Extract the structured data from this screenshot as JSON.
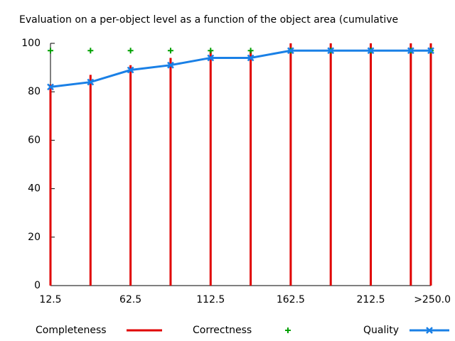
{
  "chart_data": {
    "type": "line",
    "title": "Evaluation on a per-object level as a function of the object area (cumulative",
    "x": [
      12.5,
      37.5,
      62.5,
      87.5,
      112.5,
      137.5,
      162.5,
      187.5,
      212.5,
      237.5,
      250
    ],
    "xlim": [
      12.5,
      250
    ],
    "xticks": [
      12.5,
      62.5,
      112.5,
      162.5,
      212.5,
      {
        "value": 250,
        "label": ">250.0"
      }
    ],
    "ylim": [
      0,
      100
    ],
    "yticks": [
      0,
      20,
      40,
      60,
      80,
      100
    ],
    "legend": "bottom",
    "series": [
      {
        "name": "Completeness",
        "color": "#e00000",
        "style": "impulses",
        "values": [
          83,
          87,
          91,
          94,
          97,
          97,
          100,
          100,
          100,
          100,
          100
        ]
      },
      {
        "name": "Correctness",
        "color": "#00a000",
        "style": "points",
        "values": [
          97,
          97,
          97,
          97,
          97,
          97,
          97,
          97,
          97,
          97,
          97
        ]
      },
      {
        "name": "Quality",
        "color": "#1a80e6",
        "style": "linespoints",
        "values": [
          82,
          84,
          89,
          91,
          94,
          94,
          97,
          97,
          97,
          97,
          97
        ]
      }
    ]
  }
}
